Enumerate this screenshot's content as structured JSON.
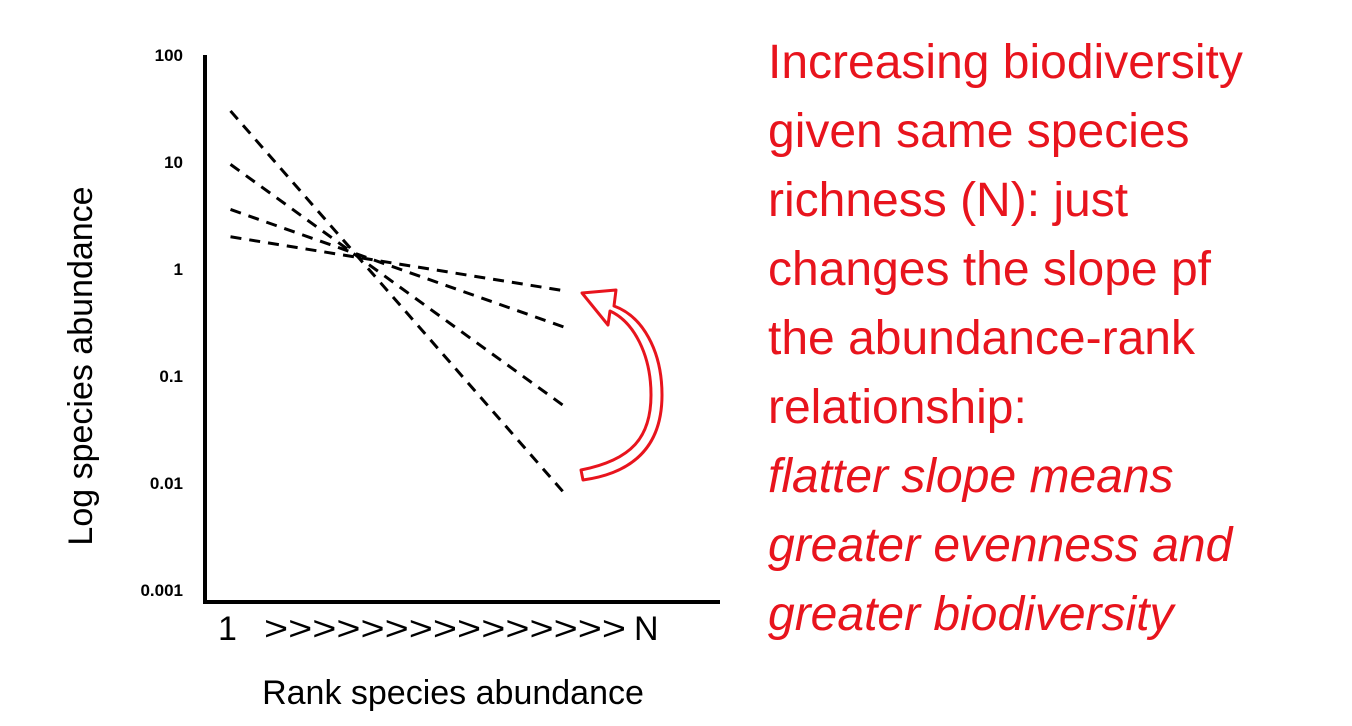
{
  "chart_data": {
    "type": "line",
    "title": "",
    "xlabel": "Rank species abundance",
    "ylabel": "Log species abundance",
    "x_tick_labels": [
      "1",
      ">>>>>>>>>>>>>>>",
      "N"
    ],
    "y_scale": "log",
    "y_ticks": [
      {
        "value": 100,
        "label": "100"
      },
      {
        "value": 10,
        "label": "10"
      },
      {
        "value": 1,
        "label": "1"
      },
      {
        "value": 0.1,
        "label": "0.1"
      },
      {
        "value": 0.01,
        "label": "0.01"
      },
      {
        "value": 0.001,
        "label": "0.001"
      }
    ],
    "ylim": [
      0.001,
      100
    ],
    "xlim": [
      0,
      1
    ],
    "series": [
      {
        "x": [
          0.05,
          0.71
        ],
        "y": [
          2.0,
          0.62
        ],
        "style": "dashed"
      },
      {
        "x": [
          0.05,
          0.71
        ],
        "y": [
          3.6,
          0.28
        ],
        "style": "dashed"
      },
      {
        "x": [
          0.05,
          0.71
        ],
        "y": [
          9.5,
          0.05
        ],
        "style": "dashed"
      },
      {
        "x": [
          0.05,
          0.71
        ],
        "y": [
          30,
          0.0075
        ],
        "style": "dashed"
      }
    ],
    "arrow": {
      "color": "#e8141d",
      "direction": "counter-clockwise, from steep line end toward flat line end"
    },
    "grid": false,
    "legend": "none"
  },
  "annotation": {
    "color": "#e8141d",
    "lines": [
      "Increasing biodiversity",
      "given same species",
      "richness (N): just",
      "changes the slope pf",
      "the abundance-rank",
      "relationship:"
    ],
    "italic_lines": [
      "flatter slope  means",
      "greater evenness  and",
      "greater biodiversity"
    ]
  }
}
